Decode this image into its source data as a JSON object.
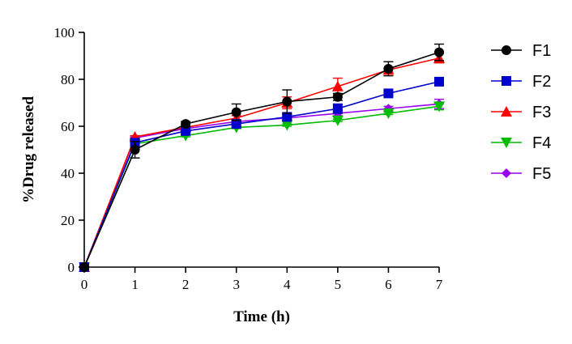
{
  "chart_data": {
    "type": "line",
    "title": "",
    "xlabel": "Time (h)",
    "ylabel": "%Drug released",
    "xlim": [
      0,
      7
    ],
    "ylim": [
      0,
      100
    ],
    "x_ticks": [
      0,
      1,
      2,
      3,
      4,
      5,
      6,
      7
    ],
    "y_ticks": [
      0,
      20,
      40,
      60,
      80,
      100
    ],
    "grid": false,
    "legend_position": "right",
    "x": [
      0,
      1,
      2,
      3,
      4,
      5,
      6,
      7
    ],
    "series": [
      {
        "name": "F1",
        "color": "#000000",
        "marker": "circle",
        "values": [
          0,
          50,
          61,
          66,
          70.5,
          72.5,
          84.5,
          91.5
        ],
        "errors": [
          0,
          3.5,
          1,
          3.5,
          5,
          1.5,
          3,
          3.5
        ]
      },
      {
        "name": "F2",
        "color": "#0000cc",
        "marker": "square",
        "values": [
          0,
          53,
          58,
          61,
          64,
          67.5,
          74,
          79
        ],
        "errors": [
          0,
          1,
          0.5,
          1,
          1,
          2,
          1,
          1
        ]
      },
      {
        "name": "F3",
        "color": "#ff0000",
        "marker": "triangle-up",
        "values": [
          0,
          55.5,
          59.5,
          63.5,
          70,
          77,
          84,
          89
        ],
        "errors": [
          0,
          0.5,
          0.5,
          1,
          2.5,
          3.5,
          1,
          2
        ]
      },
      {
        "name": "F4",
        "color": "#00bb00",
        "marker": "triangle-down",
        "values": [
          0,
          52.5,
          56,
          59.5,
          60.5,
          62.5,
          65.5,
          68.5
        ],
        "errors": [
          0,
          0.5,
          0.5,
          0.5,
          0.5,
          0.5,
          0.5,
          1.5
        ]
      },
      {
        "name": "F5",
        "color": "#9900ee",
        "marker": "diamond",
        "values": [
          0,
          55,
          59,
          62,
          63.5,
          65.5,
          67.5,
          69.5
        ],
        "errors": [
          0,
          0.5,
          0.5,
          0.5,
          1,
          1,
          1,
          2
        ]
      }
    ]
  }
}
